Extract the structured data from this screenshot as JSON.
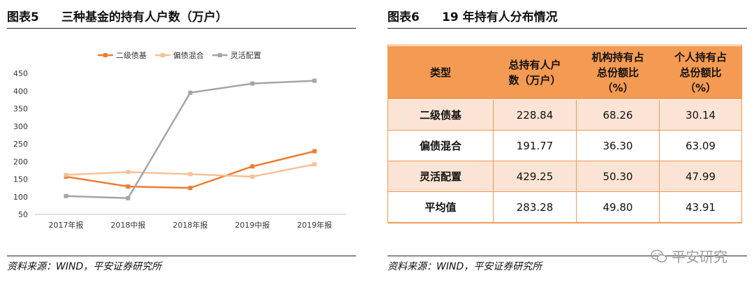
{
  "left": {
    "fig_number": "图表5",
    "fig_title": "三种基金的持有人户数（万户）",
    "source": "资料来源：WIND，平安证券研究所"
  },
  "right": {
    "fig_number": "图表6",
    "fig_title": "19 年持有人分布情况",
    "source": "资料来源：WIND，平安证券研究所",
    "table": {
      "headers": [
        [
          "类型"
        ],
        [
          "总持有人户",
          "数（万户）"
        ],
        [
          "机构持有占",
          "总份额比",
          "（%）"
        ],
        [
          "个人持有占",
          "总份额比",
          "（%）"
        ]
      ],
      "rows": [
        [
          "二级债基",
          "228.84",
          "68.26",
          "30.14"
        ],
        [
          "偏债混合",
          "191.77",
          "36.30",
          "63.09"
        ],
        [
          "灵活配置",
          "429.25",
          "50.30",
          "47.99"
        ],
        [
          "平均值",
          "283.28",
          "49.80",
          "43.91"
        ]
      ]
    }
  },
  "watermark": "平安研究",
  "chart_data": {
    "type": "line",
    "title": "三种基金的持有人户数（万户）",
    "categories": [
      "2017年报",
      "2018中报",
      "2018年报",
      "2019中报",
      "2019年报"
    ],
    "series": [
      {
        "name": "二级债基",
        "color": "#ed7d31",
        "values": [
          157,
          129,
          125,
          186,
          229
        ]
      },
      {
        "name": "偏债混合",
        "color": "#f8c198",
        "values": [
          162,
          170,
          164,
          157,
          192
        ]
      },
      {
        "name": "灵活配置",
        "color": "#a5a5a5",
        "values": [
          102,
          96,
          395,
          421,
          429
        ]
      }
    ],
    "ylim": [
      50,
      450
    ],
    "yticks": [
      50,
      100,
      150,
      200,
      250,
      300,
      350,
      400,
      450
    ],
    "xlabel": "",
    "ylabel": "",
    "legend": "top",
    "grid": false
  }
}
